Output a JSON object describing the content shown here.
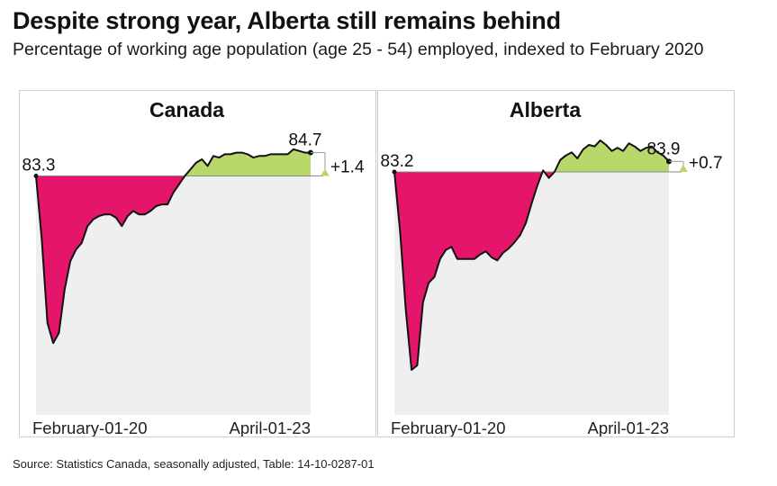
{
  "header": {
    "title": "Despite strong year, Alberta still remains behind",
    "subtitle": "Percentage of working age population (age 25 - 54) employed, indexed to February 2020"
  },
  "footer": {
    "source": "Source: Statistics Canada, seasonally adjusted, Table: 14-10-0287-01"
  },
  "colors": {
    "below_baseline": "#e5156b",
    "above_baseline": "#b8d86b",
    "background_area": "#efefef",
    "line": "#111111"
  },
  "chart_data": [
    {
      "type": "area",
      "title": "Canada",
      "x_tick_labels": [
        "February-01-20",
        "April-01-23"
      ],
      "baseline": 83.3,
      "start_label": "83.3",
      "end_label": "84.7",
      "change_label": "+1.4",
      "ylim": [
        69,
        85.7
      ],
      "series": [
        {
          "values": [
            83.3,
            79.5,
            74.5,
            73.3,
            73.9,
            76.5,
            78.2,
            78.9,
            79.3,
            80.3,
            80.7,
            80.9,
            81.0,
            81.0,
            80.8,
            80.3,
            80.9,
            81.2,
            81.0,
            81.0,
            81.2,
            81.5,
            81.6,
            81.6,
            82.3,
            82.8,
            83.3,
            83.7,
            84.1,
            84.3,
            83.9,
            84.5,
            84.4,
            84.6,
            84.6,
            84.7,
            84.7,
            84.6,
            84.4,
            84.5,
            84.5,
            84.6,
            84.6,
            84.6,
            84.6,
            84.9,
            84.8,
            84.7,
            84.7
          ]
        }
      ]
    },
    {
      "type": "area",
      "title": "Alberta",
      "x_tick_labels": [
        "February-01-20",
        "April-01-23"
      ],
      "baseline": 83.2,
      "start_label": "83.2",
      "end_label": "83.9",
      "change_label": "+0.7",
      "ylim": [
        67,
        85.6
      ],
      "series": [
        {
          "values": [
            83.2,
            79.2,
            74.0,
            70.0,
            70.3,
            74.5,
            75.8,
            76.2,
            77.4,
            78.0,
            78.2,
            77.4,
            77.4,
            77.4,
            77.4,
            77.7,
            77.9,
            77.5,
            77.3,
            77.8,
            78.1,
            78.5,
            79.0,
            79.8,
            81.1,
            82.3,
            83.3,
            82.8,
            83.2,
            84.0,
            84.3,
            84.5,
            84.1,
            84.7,
            85.0,
            84.9,
            85.3,
            85.0,
            84.6,
            84.8,
            84.6,
            85.1,
            84.9,
            84.6,
            84.8,
            84.9,
            84.5,
            84.3,
            83.9
          ]
        }
      ]
    }
  ]
}
